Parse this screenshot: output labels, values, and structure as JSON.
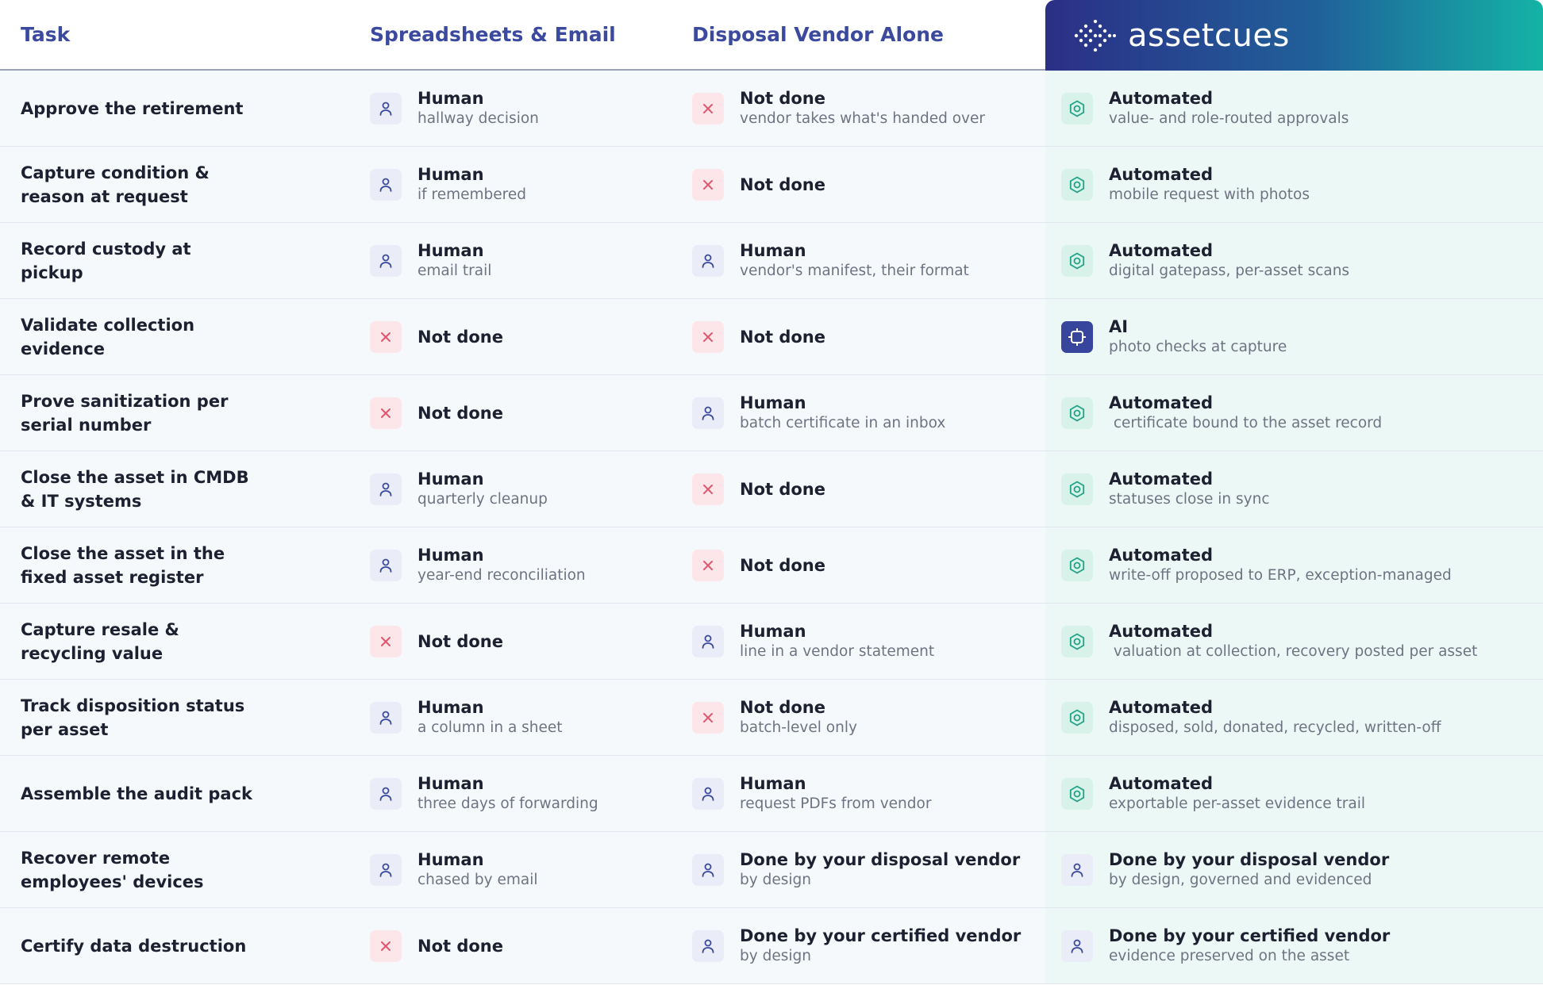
{
  "header": {
    "task": "Task",
    "spreadsheets": "Spreadsheets & Email",
    "vendor": "Disposal Vendor Alone",
    "brand": "assetcues"
  },
  "rows": [
    {
      "task": "Approve the retirement",
      "cells": [
        {
          "icon": "person",
          "title": "Human",
          "sub": "hallway decision"
        },
        {
          "icon": "cross",
          "title": "Not done",
          "sub": "vendor takes what's handed over"
        },
        {
          "icon": "gear",
          "title": "Automated",
          "sub": "value- and role-routed approvals"
        }
      ]
    },
    {
      "task": "Capture condition & reason at request",
      "cells": [
        {
          "icon": "person",
          "title": "Human",
          "sub": "if remembered"
        },
        {
          "icon": "cross",
          "title": "Not done"
        },
        {
          "icon": "gear",
          "title": "Automated",
          "sub": "mobile request with photos"
        }
      ]
    },
    {
      "task": "Record custody at pickup",
      "cells": [
        {
          "icon": "person",
          "title": "Human",
          "sub": "email trail"
        },
        {
          "icon": "person",
          "title": "Human",
          "sub": "vendor's manifest, their format"
        },
        {
          "icon": "gear",
          "title": "Automated",
          "sub": "digital gatepass, per-asset scans"
        }
      ]
    },
    {
      "task": "Validate collection evidence",
      "cells": [
        {
          "icon": "cross",
          "title": "Not done"
        },
        {
          "icon": "cross",
          "title": "Not done"
        },
        {
          "icon": "chip",
          "title": "AI",
          "sub": "photo checks at capture"
        }
      ]
    },
    {
      "task": "Prove sanitization per serial number",
      "cells": [
        {
          "icon": "cross",
          "title": "Not done"
        },
        {
          "icon": "person",
          "title": "Human",
          "sub": "batch certificate in an inbox"
        },
        {
          "icon": "gear",
          "title": "Automated",
          "sub": " certificate bound to the asset record"
        }
      ]
    },
    {
      "task": "Close the asset in CMDB & IT systems",
      "cells": [
        {
          "icon": "person",
          "title": "Human",
          "sub": "quarterly cleanup"
        },
        {
          "icon": "cross",
          "title": "Not done"
        },
        {
          "icon": "gear",
          "title": "Automated",
          "sub": "statuses close in sync"
        }
      ]
    },
    {
      "task": "Close the asset in the fixed asset register",
      "cells": [
        {
          "icon": "person",
          "title": "Human",
          "sub": "year-end reconciliation"
        },
        {
          "icon": "cross",
          "title": "Not done"
        },
        {
          "icon": "gear",
          "title": "Automated",
          "sub": "write-off proposed to ERP, exception-managed"
        }
      ]
    },
    {
      "task": "Capture resale & recycling value",
      "cells": [
        {
          "icon": "cross",
          "title": "Not done"
        },
        {
          "icon": "person",
          "title": "Human",
          "sub": "line in a vendor statement"
        },
        {
          "icon": "gear",
          "title": "Automated",
          "sub": " valuation at collection, recovery posted per asset"
        }
      ]
    },
    {
      "task": "Track disposition status per asset",
      "cells": [
        {
          "icon": "person",
          "title": "Human",
          "sub": "a column in a sheet"
        },
        {
          "icon": "cross",
          "title": "Not done",
          "sub": "batch-level only"
        },
        {
          "icon": "gear",
          "title": "Automated",
          "sub": "disposed, sold, donated, recycled, written-off"
        }
      ]
    },
    {
      "task": "Assemble the audit pack",
      "cells": [
        {
          "icon": "person",
          "title": "Human",
          "sub": "three days of forwarding"
        },
        {
          "icon": "person",
          "title": "Human",
          "sub": "request PDFs from vendor"
        },
        {
          "icon": "gear",
          "title": "Automated",
          "sub": "exportable per-asset evidence trail"
        }
      ]
    },
    {
      "task": "Recover remote employees' devices",
      "cells": [
        {
          "icon": "person",
          "title": "Human",
          "sub": "chased by email"
        },
        {
          "icon": "person",
          "title": "Done by your disposal vendor",
          "sub": "by design"
        },
        {
          "icon": "person",
          "title": "Done by your disposal vendor",
          "sub": "by design, governed and evidenced"
        }
      ]
    },
    {
      "task": "Certify data destruction",
      "cells": [
        {
          "icon": "cross",
          "title": "Not done"
        },
        {
          "icon": "person",
          "title": "Done by your certified vendor",
          "sub": "by design"
        },
        {
          "icon": "person",
          "title": "Done by your certified vendor",
          "sub": "evidence preserved on the asset"
        }
      ]
    }
  ]
}
